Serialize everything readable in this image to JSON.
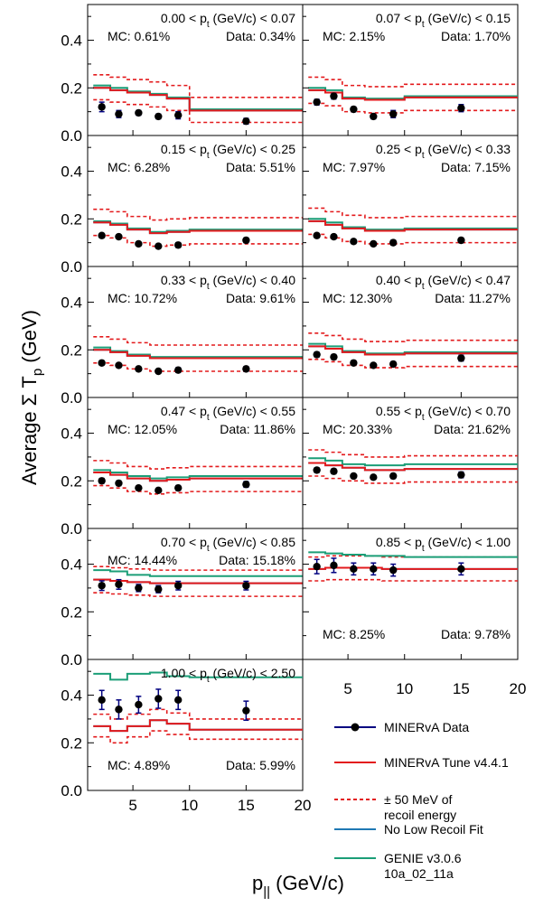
{
  "figure": {
    "ylabel": "Average Σ T",
    "ylabel_sub": "p",
    "ylabel_unit": " (GeV)",
    "xlabel": "p",
    "xlabel_sub": "||",
    "xlabel_unit": " (GeV/c)"
  },
  "legend": {
    "items": [
      {
        "key": "data",
        "lines": [
          "MINERvA Data"
        ],
        "color": "#000080",
        "style": "marker"
      },
      {
        "key": "tune",
        "lines": [
          "MINERvA Tune v4.4.1"
        ],
        "color": "#e31a1c",
        "style": "solid"
      },
      {
        "key": "band",
        "lines": [
          "± 50 MeV of",
          "recoil energy"
        ],
        "color": "#e31a1c",
        "style": "dashed"
      },
      {
        "key": "nolowrecoil",
        "lines": [
          "No Low Recoil Fit"
        ],
        "color": "#1f78b4",
        "style": "solid"
      },
      {
        "key": "genie",
        "lines": [
          "GENIE v3.0.6",
          "10a_02_11a"
        ],
        "color": "#1b9e77",
        "style": "solid"
      }
    ]
  },
  "axes": {
    "x_ticks": [
      5,
      10,
      15,
      20
    ],
    "xlim": [
      1.0,
      20.0
    ],
    "left_y_ticks_top": [
      "0.4",
      "0.2",
      "0.0"
    ],
    "left_y_ticks_low": [
      "0.4",
      "0.2",
      "0.0"
    ],
    "ylim_top": [
      0,
      0.55
    ],
    "ylim_low": [
      0,
      0.55
    ],
    "bin_edges": [
      1.5,
      3.0,
      4.5,
      6.5,
      8.0,
      10.0,
      20.0
    ]
  },
  "chart_data": [
    {
      "type": "line",
      "title": "0.00 < p_t (GeV/c) < 0.07",
      "range_text": "0.00 < p",
      "range_sub": "t",
      "range_tail": " (GeV/c) < 0.07",
      "mc_text": "MC: 0.61%",
      "data_text": "Data: 0.34%",
      "label_pos": "top",
      "data_x": [
        2.25,
        3.75,
        5.5,
        7.25,
        9.0,
        15.0
      ],
      "data_y": [
        0.12,
        0.09,
        0.095,
        0.08,
        0.085,
        0.06
      ],
      "data_err": [
        0.02,
        0.015,
        0.01,
        0.01,
        0.015,
        0.012
      ],
      "tune": [
        0.2,
        0.19,
        0.18,
        0.17,
        0.155,
        0.105
      ],
      "nolowrecoil": [
        0.2,
        0.19,
        0.18,
        0.17,
        0.155,
        0.105
      ],
      "genie": [
        0.21,
        0.2,
        0.185,
        0.175,
        0.16,
        0.11
      ],
      "band_up": [
        0.255,
        0.245,
        0.235,
        0.225,
        0.21,
        0.16
      ],
      "band_down": [
        0.15,
        0.14,
        0.13,
        0.12,
        0.105,
        0.055
      ]
    },
    {
      "type": "line",
      "title": "0.07 < p_t (GeV/c) < 0.15",
      "range_text": "0.07 < p",
      "range_sub": "t",
      "range_tail": " (GeV/c) < 0.15",
      "mc_text": "MC: 2.15%",
      "data_text": "Data: 1.70%",
      "label_pos": "top",
      "data_x": [
        2.25,
        3.75,
        5.5,
        7.25,
        9.0,
        15.0
      ],
      "data_y": [
        0.14,
        0.165,
        0.11,
        0.08,
        0.09,
        0.115
      ],
      "data_err": [
        0.012,
        0.012,
        0.01,
        0.01,
        0.015,
        0.015
      ],
      "tune": [
        0.19,
        0.18,
        0.155,
        0.15,
        0.15,
        0.16
      ],
      "nolowrecoil": [
        0.19,
        0.18,
        0.155,
        0.15,
        0.15,
        0.16
      ],
      "genie": [
        0.2,
        0.19,
        0.16,
        0.155,
        0.155,
        0.165
      ],
      "band_up": [
        0.245,
        0.235,
        0.21,
        0.205,
        0.205,
        0.215
      ],
      "band_down": [
        0.135,
        0.125,
        0.1,
        0.095,
        0.095,
        0.105
      ]
    },
    {
      "type": "line",
      "title": "0.15 < p_t (GeV/c) < 0.25",
      "range_text": "0.15 < p",
      "range_sub": "t",
      "range_tail": " (GeV/c) < 0.25",
      "mc_text": "MC: 6.28%",
      "data_text": "Data: 5.51%",
      "label_pos": "top",
      "data_x": [
        2.25,
        3.75,
        5.5,
        7.25,
        9.0,
        15.0
      ],
      "data_y": [
        0.13,
        0.125,
        0.095,
        0.085,
        0.09,
        0.11
      ],
      "data_err": [
        0.008,
        0.008,
        0.008,
        0.008,
        0.01,
        0.01
      ],
      "tune": [
        0.185,
        0.175,
        0.155,
        0.14,
        0.145,
        0.15
      ],
      "nolowrecoil": [
        0.185,
        0.175,
        0.155,
        0.14,
        0.145,
        0.15
      ],
      "genie": [
        0.19,
        0.18,
        0.16,
        0.145,
        0.15,
        0.155
      ],
      "band_up": [
        0.24,
        0.23,
        0.21,
        0.195,
        0.2,
        0.205
      ],
      "band_down": [
        0.13,
        0.12,
        0.1,
        0.085,
        0.09,
        0.095
      ]
    },
    {
      "type": "line",
      "title": "0.25 < p_t (GeV/c) < 0.33",
      "range_text": "0.25 < p",
      "range_sub": "t",
      "range_tail": " (GeV/c) < 0.33",
      "mc_text": "MC: 7.97%",
      "data_text": "Data: 7.15%",
      "label_pos": "top",
      "data_x": [
        2.25,
        3.75,
        5.5,
        7.25,
        9.0,
        15.0
      ],
      "data_y": [
        0.13,
        0.125,
        0.105,
        0.095,
        0.1,
        0.11
      ],
      "data_err": [
        0.008,
        0.008,
        0.008,
        0.008,
        0.01,
        0.01
      ],
      "tune": [
        0.19,
        0.175,
        0.16,
        0.15,
        0.15,
        0.155
      ],
      "nolowrecoil": [
        0.19,
        0.175,
        0.16,
        0.15,
        0.15,
        0.155
      ],
      "genie": [
        0.2,
        0.185,
        0.165,
        0.155,
        0.155,
        0.16
      ],
      "band_up": [
        0.245,
        0.23,
        0.215,
        0.205,
        0.205,
        0.21
      ],
      "band_down": [
        0.135,
        0.12,
        0.105,
        0.095,
        0.095,
        0.1
      ]
    },
    {
      "type": "line",
      "title": "0.33 < p_t (GeV/c) < 0.40",
      "range_text": "0.33 < p",
      "range_sub": "t",
      "range_tail": " (GeV/c) < 0.40",
      "mc_text": "MC: 10.72%",
      "data_text": "Data: 9.61%",
      "label_pos": "top",
      "data_x": [
        2.25,
        3.75,
        5.5,
        7.25,
        9.0,
        15.0
      ],
      "data_y": [
        0.145,
        0.135,
        0.12,
        0.11,
        0.115,
        0.12
      ],
      "data_err": [
        0.008,
        0.008,
        0.008,
        0.008,
        0.01,
        0.01
      ],
      "tune": [
        0.2,
        0.19,
        0.175,
        0.165,
        0.165,
        0.165
      ],
      "nolowrecoil": [
        0.2,
        0.19,
        0.175,
        0.165,
        0.165,
        0.165
      ],
      "genie": [
        0.21,
        0.195,
        0.18,
        0.17,
        0.17,
        0.17
      ],
      "band_up": [
        0.255,
        0.245,
        0.23,
        0.22,
        0.22,
        0.22
      ],
      "band_down": [
        0.145,
        0.135,
        0.12,
        0.11,
        0.11,
        0.11
      ]
    },
    {
      "type": "line",
      "title": "0.40 < p_t (GeV/c) < 0.47",
      "range_text": "0.40 < p",
      "range_sub": "t",
      "range_tail": " (GeV/c) < 0.47",
      "mc_text": "MC: 12.30%",
      "data_text": "Data: 11.27%",
      "label_pos": "top",
      "data_x": [
        2.25,
        3.75,
        5.5,
        7.25,
        9.0,
        15.0
      ],
      "data_y": [
        0.18,
        0.17,
        0.145,
        0.135,
        0.14,
        0.165
      ],
      "data_err": [
        0.01,
        0.01,
        0.008,
        0.008,
        0.01,
        0.012
      ],
      "tune": [
        0.215,
        0.205,
        0.19,
        0.18,
        0.18,
        0.185
      ],
      "nolowrecoil": [
        0.215,
        0.205,
        0.19,
        0.18,
        0.18,
        0.185
      ],
      "genie": [
        0.225,
        0.215,
        0.195,
        0.185,
        0.185,
        0.19
      ],
      "band_up": [
        0.27,
        0.26,
        0.245,
        0.235,
        0.235,
        0.24
      ],
      "band_down": [
        0.16,
        0.15,
        0.135,
        0.125,
        0.125,
        0.13
      ]
    },
    {
      "type": "line",
      "title": "0.47 < p_t (GeV/c) < 0.55",
      "range_text": "0.47 < p",
      "range_sub": "t",
      "range_tail": " (GeV/c) < 0.55",
      "mc_text": "MC: 12.05%",
      "data_text": "Data: 11.86%",
      "label_pos": "top",
      "data_x": [
        2.25,
        3.75,
        5.5,
        7.25,
        9.0,
        15.0
      ],
      "data_y": [
        0.2,
        0.19,
        0.17,
        0.16,
        0.17,
        0.185
      ],
      "data_err": [
        0.01,
        0.01,
        0.008,
        0.008,
        0.01,
        0.012
      ],
      "tune": [
        0.235,
        0.225,
        0.21,
        0.2,
        0.205,
        0.21
      ],
      "nolowrecoil": [
        0.235,
        0.225,
        0.21,
        0.2,
        0.205,
        0.21
      ],
      "genie": [
        0.245,
        0.235,
        0.22,
        0.21,
        0.215,
        0.22
      ],
      "band_up": [
        0.285,
        0.275,
        0.26,
        0.25,
        0.255,
        0.26
      ],
      "band_down": [
        0.18,
        0.17,
        0.155,
        0.145,
        0.15,
        0.155
      ]
    },
    {
      "type": "line",
      "title": "0.55 < p_t (GeV/c) < 0.70",
      "range_text": "0.55 < p",
      "range_sub": "t",
      "range_tail": " (GeV/c) < 0.70",
      "mc_text": "MC: 20.33%",
      "data_text": "Data: 21.62%",
      "label_pos": "top",
      "data_x": [
        2.25,
        3.75,
        5.5,
        7.25,
        9.0,
        15.0
      ],
      "data_y": [
        0.245,
        0.24,
        0.22,
        0.215,
        0.22,
        0.225
      ],
      "data_err": [
        0.01,
        0.01,
        0.008,
        0.008,
        0.01,
        0.012
      ],
      "tune": [
        0.275,
        0.265,
        0.255,
        0.245,
        0.245,
        0.25
      ],
      "nolowrecoil": [
        0.275,
        0.265,
        0.255,
        0.245,
        0.245,
        0.25
      ],
      "genie": [
        0.295,
        0.285,
        0.27,
        0.265,
        0.265,
        0.27
      ],
      "band_up": [
        0.33,
        0.32,
        0.31,
        0.3,
        0.3,
        0.305
      ],
      "band_down": [
        0.22,
        0.21,
        0.2,
        0.19,
        0.19,
        0.195
      ]
    },
    {
      "type": "line",
      "title": "0.70 < p_t (GeV/c) < 0.85",
      "range_text": "0.70 < p",
      "range_sub": "t",
      "range_tail": " (GeV/c) < 0.85",
      "mc_text": "MC: 14.44%",
      "data_text": "Data: 15.18%",
      "label_pos": "top",
      "data_x": [
        2.25,
        3.75,
        5.5,
        7.25,
        9.0,
        15.0
      ],
      "data_y": [
        0.31,
        0.315,
        0.3,
        0.295,
        0.31,
        0.31
      ],
      "data_err": [
        0.02,
        0.02,
        0.015,
        0.015,
        0.018,
        0.018
      ],
      "tune": [
        0.335,
        0.33,
        0.325,
        0.32,
        0.32,
        0.32
      ],
      "nolowrecoil": [
        0.335,
        0.33,
        0.325,
        0.32,
        0.32,
        0.32
      ],
      "genie": [
        0.375,
        0.37,
        0.355,
        0.35,
        0.35,
        0.35
      ],
      "band_up": [
        0.39,
        0.385,
        0.38,
        0.375,
        0.375,
        0.375
      ],
      "band_down": [
        0.28,
        0.275,
        0.27,
        0.265,
        0.265,
        0.265
      ]
    },
    {
      "type": "line",
      "title": "0.85 < p_t (GeV/c) < 1.00",
      "range_text": "0.85 < p",
      "range_sub": "t",
      "range_tail": " (GeV/c) < 1.00",
      "mc_text": "MC: 8.25%",
      "data_text": "Data: 9.78%",
      "label_pos": "bottom",
      "data_x": [
        2.25,
        3.75,
        5.5,
        7.25,
        9.0,
        15.0
      ],
      "data_y": [
        0.39,
        0.395,
        0.38,
        0.38,
        0.375,
        0.38
      ],
      "data_err": [
        0.03,
        0.03,
        0.025,
        0.025,
        0.025,
        0.025
      ],
      "tune": [
        0.38,
        0.385,
        0.385,
        0.385,
        0.38,
        0.38
      ],
      "nolowrecoil": [
        0.38,
        0.385,
        0.385,
        0.385,
        0.38,
        0.38
      ],
      "genie": [
        0.45,
        0.445,
        0.44,
        0.435,
        0.435,
        0.43
      ],
      "band_up": [
        0.43,
        0.435,
        0.435,
        0.435,
        0.43,
        0.43
      ],
      "band_down": [
        0.33,
        0.335,
        0.335,
        0.335,
        0.33,
        0.33
      ]
    },
    {
      "type": "line",
      "title": "1.00 < p_t (GeV/c) < 2.50",
      "range_text": "1.00 < p",
      "range_sub": "t",
      "range_tail": " (GeV/c) < 2.50",
      "mc_text": "MC: 4.89%",
      "data_text": "Data: 5.99%",
      "label_pos": "bottom",
      "data_x": [
        2.25,
        3.75,
        5.5,
        7.25,
        9.0,
        15.0
      ],
      "data_y": [
        0.38,
        0.34,
        0.36,
        0.385,
        0.38,
        0.335
      ],
      "data_err": [
        0.04,
        0.04,
        0.035,
        0.04,
        0.04,
        0.04
      ],
      "tune": [
        0.27,
        0.25,
        0.27,
        0.295,
        0.28,
        0.255
      ],
      "nolowrecoil": [
        0.27,
        0.25,
        0.27,
        0.295,
        0.28,
        0.255
      ],
      "genie": [
        0.49,
        0.465,
        0.49,
        0.495,
        0.48,
        0.475
      ],
      "band_up": [
        0.32,
        0.3,
        0.32,
        0.34,
        0.325,
        0.3
      ],
      "band_down": [
        0.225,
        0.2,
        0.225,
        0.25,
        0.235,
        0.215
      ]
    }
  ]
}
